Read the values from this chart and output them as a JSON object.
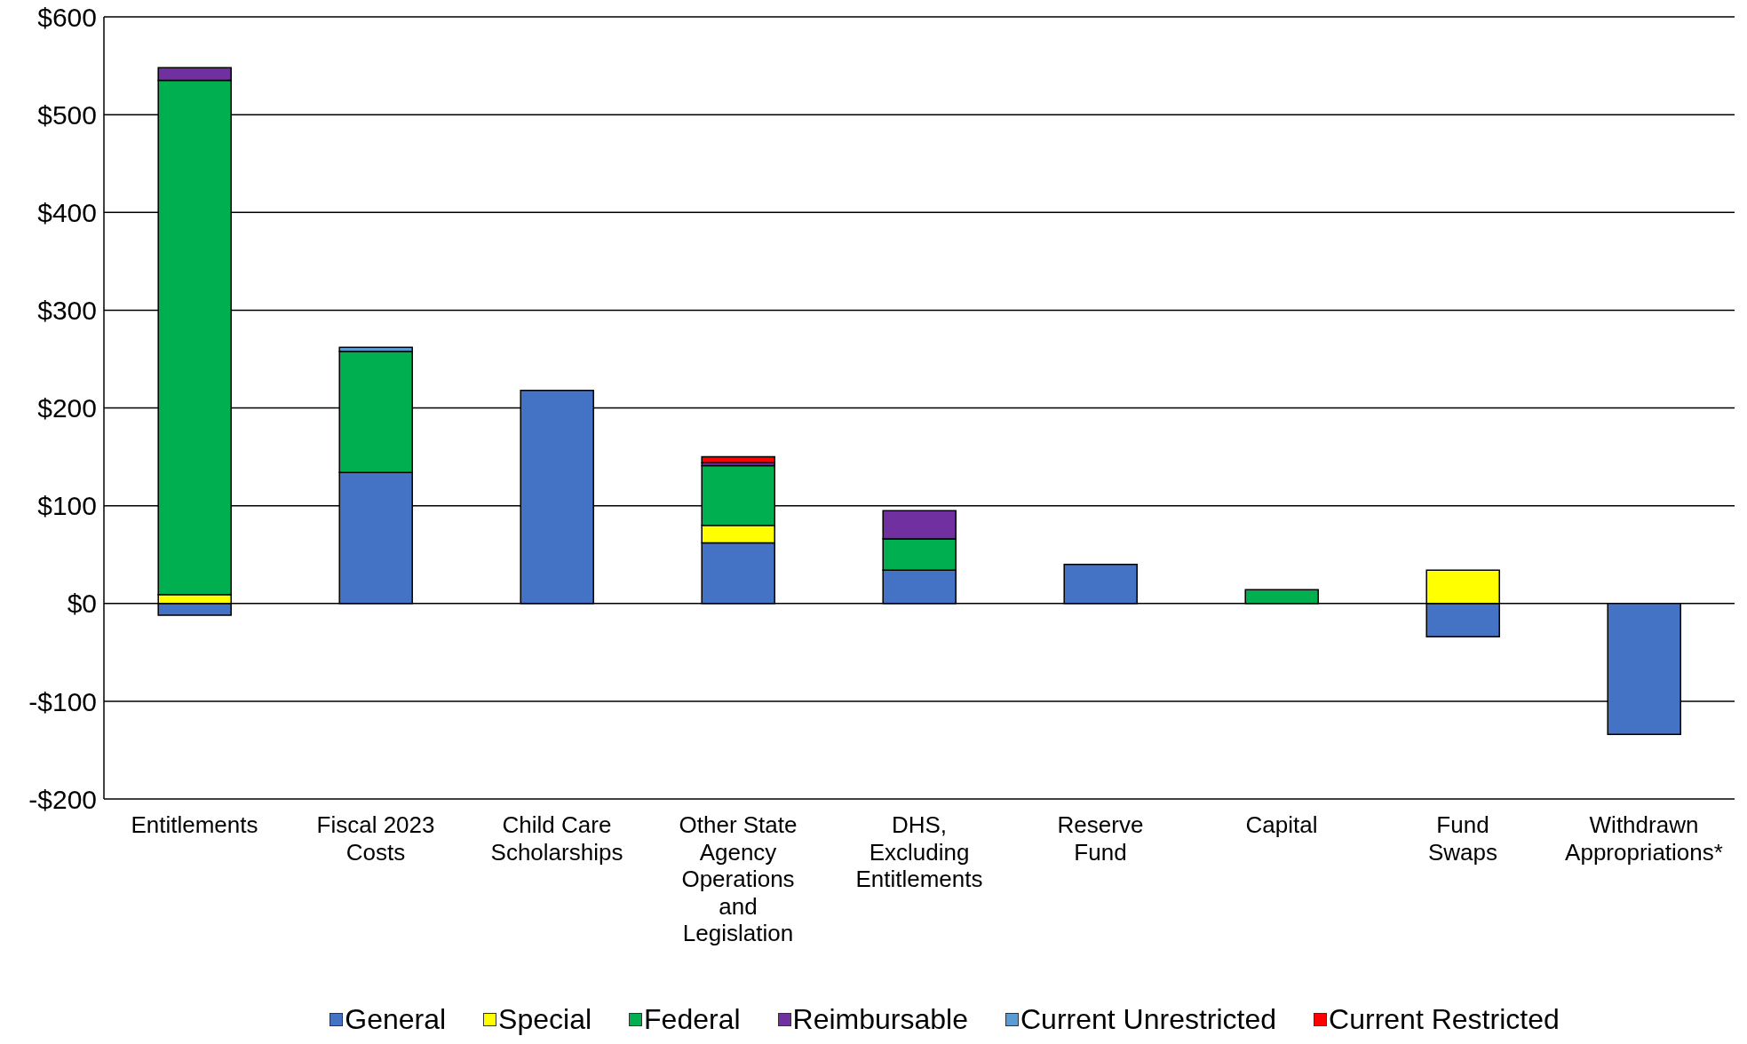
{
  "chart_data": {
    "type": "bar",
    "stacked": true,
    "categories": [
      "Entitlements",
      "Fiscal 2023 Costs",
      "Child Care Scholarships",
      "Other State Agency Operations and Legislation",
      "DHS, Excluding Entitlements",
      "Reserve Fund",
      "Capital",
      "Fund Swaps",
      "Withdrawn Appropriations*"
    ],
    "series": [
      {
        "name": "General",
        "color": "#4472c4",
        "values": [
          -12,
          134,
          218,
          62,
          34,
          40,
          null,
          -34,
          -134
        ]
      },
      {
        "name": "Special",
        "color": "#ffff00",
        "values": [
          9,
          null,
          null,
          18,
          null,
          null,
          null,
          34,
          null
        ]
      },
      {
        "name": "Federal",
        "color": "#00b050",
        "values": [
          526,
          124,
          null,
          61,
          32,
          null,
          14,
          null,
          null
        ]
      },
      {
        "name": "Reimbursable",
        "color": "#7030a0",
        "values": [
          13,
          null,
          null,
          3,
          29,
          null,
          null,
          null,
          null
        ]
      },
      {
        "name": "Current Unrestricted",
        "color": "#5b9bd5",
        "values": [
          null,
          4,
          null,
          null,
          null,
          null,
          null,
          null,
          null
        ]
      },
      {
        "name": "Current Restricted",
        "color": "#ff0000",
        "values": [
          null,
          null,
          null,
          6,
          null,
          null,
          null,
          null,
          null
        ]
      }
    ],
    "ylim": [
      -200,
      600
    ],
    "yticks": [
      {
        "value": -200,
        "label": "-$200"
      },
      {
        "value": -100,
        "label": "-$100"
      },
      {
        "value": 0,
        "label": "$0"
      },
      {
        "value": 100,
        "label": "$100"
      },
      {
        "value": 200,
        "label": "$200"
      },
      {
        "value": 300,
        "label": "$300"
      },
      {
        "value": 400,
        "label": "$400"
      },
      {
        "value": 500,
        "label": "$500"
      },
      {
        "value": 600,
        "label": "$600"
      }
    ],
    "grid": "y",
    "legend": "bottom"
  }
}
